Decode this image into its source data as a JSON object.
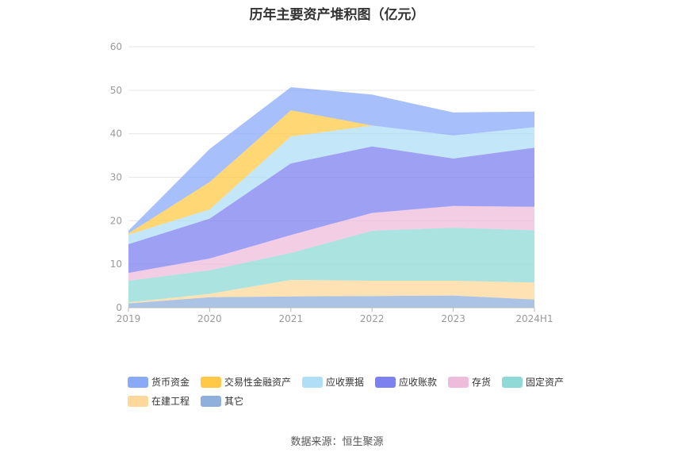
{
  "chart_data": {
    "type": "area",
    "stacked": true,
    "title": "历年主要资产堆积图（亿元）",
    "categories": [
      "2019",
      "2020",
      "2021",
      "2022",
      "2023",
      "2024H1"
    ],
    "ylim": [
      0,
      60
    ],
    "yticks": [
      "0",
      "10",
      "20",
      "30",
      "40",
      "50",
      "60"
    ],
    "grid": true,
    "legend_position": "bottom",
    "series": [
      {
        "name": "其它",
        "color": "#8fafdc",
        "values": [
          1.0,
          2.4,
          2.6,
          2.7,
          2.8,
          1.9
        ]
      },
      {
        "name": "在建工程",
        "color": "#fdd89a",
        "values": [
          0.2,
          0.8,
          3.8,
          3.5,
          3.4,
          3.9
        ]
      },
      {
        "name": "固定资产",
        "color": "#8fd9d6",
        "values": [
          5.0,
          5.4,
          6.2,
          11.5,
          12.2,
          12.0
        ]
      },
      {
        "name": "存货",
        "color": "#edbcdb",
        "values": [
          1.8,
          2.7,
          4.1,
          4.1,
          5.0,
          5.4
        ]
      },
      {
        "name": "应收账款",
        "color": "#7d80ef",
        "values": [
          6.6,
          9.2,
          16.5,
          15.3,
          10.9,
          13.6
        ]
      },
      {
        "name": "应收票据",
        "color": "#b0def7",
        "values": [
          2.2,
          2.1,
          6.2,
          4.8,
          5.3,
          4.7
        ]
      },
      {
        "name": "交易性金融资产",
        "color": "#ffc947",
        "values": [
          0.3,
          6.3,
          6.0,
          0.0,
          0.0,
          0.0
        ]
      },
      {
        "name": "货币资金",
        "color": "#8aaaf8",
        "values": [
          0.6,
          7.6,
          5.3,
          7.1,
          5.3,
          3.6
        ]
      }
    ],
    "legend_order": [
      "货币资金",
      "交易性金融资产",
      "应收票据",
      "应收账款",
      "存货",
      "固定资产",
      "在建工程",
      "其它"
    ],
    "source": "数据来源：恒生聚源"
  }
}
